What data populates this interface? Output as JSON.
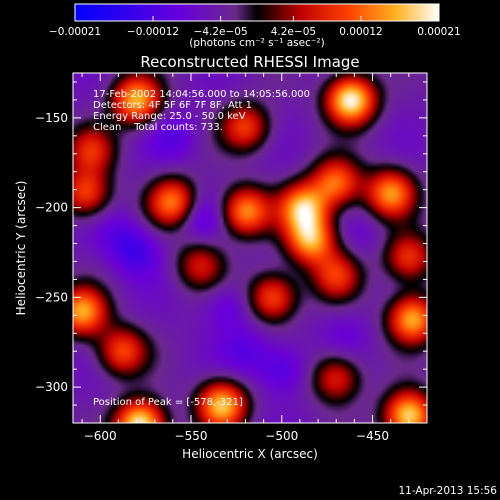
{
  "chart_data": {
    "type": "heatmap",
    "title": "Reconstructed RHESSI Image",
    "xlabel": "Heliocentric X (arcsec)",
    "ylabel": "Heliocentric Y (arcsec)",
    "xlim": [
      -615,
      -420
    ],
    "ylim": [
      -320,
      -125
    ],
    "x_ticks": [
      -600,
      -550,
      -500,
      -450
    ],
    "y_ticks": [
      -300,
      -250,
      -200,
      -150
    ],
    "x_tick_labels": [
      "−600",
      "−550",
      "−500",
      "−450"
    ],
    "y_tick_labels": [
      "−300",
      "−250",
      "−200",
      "−150"
    ],
    "colorbar": {
      "range": [
        -0.00021,
        0.00021
      ],
      "ticks": [
        -0.00021,
        -0.00012,
        -4.2e-05,
        4.2e-05,
        0.00012,
        0.00021
      ],
      "tick_labels": [
        "−0.00021",
        "−0.00012",
        "−4.2e−05",
        "4.2e−05",
        "0.00012",
        "0.00021"
      ],
      "units_label": "(photons cm⁻² s⁻¹ asec⁻²)"
    },
    "annotations": [
      "17-Feb-2002 14:04:56.000 to 14:05:56.000",
      "Detectors: 4F 5F 6F 7F 8F, Att 1",
      "Energy Range: 25.0 - 50.0 keV",
      "Clean    Total counts: 733."
    ],
    "peak_label": "Position of Peak = [-578,-321]",
    "peak": [
      -578,
      -321
    ],
    "sources": [
      {
        "x": -462,
        "y": -140,
        "value": 0.00021
      },
      {
        "x": -578,
        "y": -321,
        "value": 0.00021
      },
      {
        "x": -430,
        "y": -316,
        "value": 0.00019
      },
      {
        "x": -580,
        "y": -140,
        "value": 0.00016
      },
      {
        "x": -533,
        "y": -310,
        "value": 0.00017
      },
      {
        "x": -610,
        "y": -258,
        "value": 0.00015
      },
      {
        "x": -520,
        "y": -202,
        "value": 0.00014
      },
      {
        "x": -560,
        "y": -197,
        "value": 0.00013
      },
      {
        "x": -488,
        "y": -200,
        "value": 0.00016
      },
      {
        "x": -484,
        "y": -218,
        "value": 0.00015
      },
      {
        "x": -470,
        "y": -186,
        "value": 0.00012
      },
      {
        "x": -440,
        "y": -192,
        "value": 0.00014
      },
      {
        "x": -428,
        "y": -262,
        "value": 0.00016
      },
      {
        "x": -588,
        "y": -280,
        "value": 0.0001
      },
      {
        "x": -608,
        "y": -192,
        "value": 0.0001
      },
      {
        "x": -520,
        "y": -155,
        "value": 9e-05
      },
      {
        "x": -505,
        "y": -250,
        "value": 0.00011
      },
      {
        "x": -470,
        "y": -238,
        "value": 8e-05
      },
      {
        "x": -545,
        "y": -232,
        "value": 6e-05
      },
      {
        "x": -470,
        "y": -295,
        "value": 8e-05
      },
      {
        "x": -605,
        "y": -168,
        "value": 7e-05
      },
      {
        "x": -430,
        "y": -228,
        "value": 9e-05
      },
      {
        "x": -560,
        "y": -160,
        "value": -0.0001
      },
      {
        "x": -500,
        "y": -290,
        "value": -0.00012
      },
      {
        "x": -580,
        "y": -225,
        "value": -0.00012
      },
      {
        "x": -530,
        "y": -255,
        "value": -0.0001
      },
      {
        "x": -545,
        "y": -205,
        "value": -0.00011
      },
      {
        "x": -465,
        "y": -270,
        "value": -8e-05
      },
      {
        "x": -520,
        "y": -280,
        "value": -0.0001
      },
      {
        "x": -590,
        "y": -215,
        "value": -9e-05
      },
      {
        "x": -455,
        "y": -215,
        "value": -7e-05
      }
    ]
  },
  "footer": {
    "timestamp": "11-Apr-2013 15:56"
  },
  "colors": {
    "background": "#000000",
    "text": "#ffffff"
  }
}
